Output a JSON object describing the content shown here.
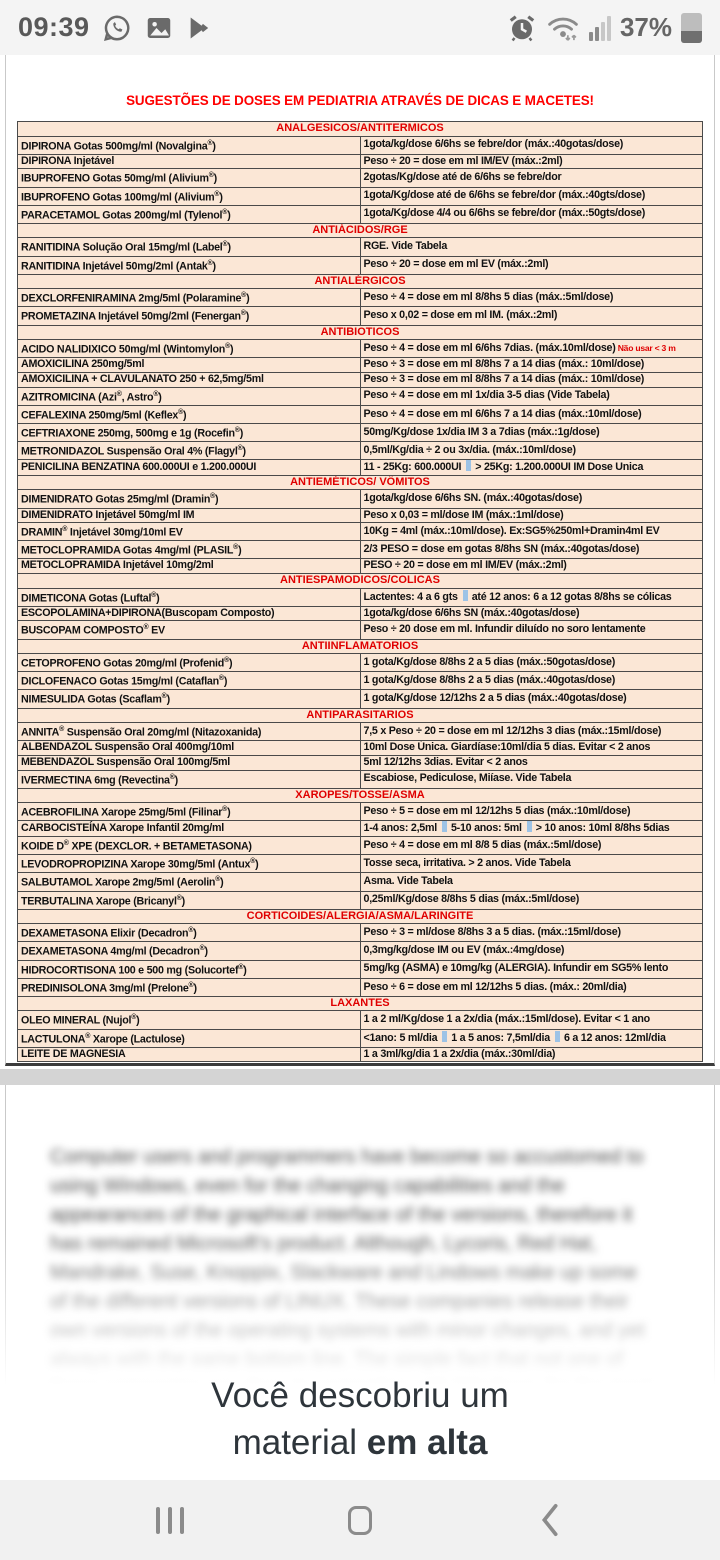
{
  "status_bar": {
    "time": "09:39",
    "battery_percent": "37%",
    "left_icons": [
      "whatsapp-icon",
      "gallery-icon",
      "play-store-icon"
    ],
    "right_icons": [
      "alarm-icon",
      "wifi-icon",
      "signal-icon",
      "battery-icon"
    ]
  },
  "document": {
    "title": "SUGESTÕES DE DOSES EM PEDIATRIA ATRAVÉS DE DICAS E MACETES!",
    "sections": [
      {
        "header": "ANALGESICOS/ANTITERMICOS",
        "rows": [
          {
            "drug": "DIPIRONA Gotas 500mg/ml (Novalgina®)",
            "dose": "1gota/kg/dose 6/6hs se febre/dor (máx.:40gotas/dose)"
          },
          {
            "drug": "DIPIRONA Injetável",
            "dose": "Peso ÷ 20 = dose em ml IM/EV (máx.:2ml)"
          },
          {
            "drug": "IBUPROFENO Gotas 50mg/ml (Alivium®)",
            "dose": "2gotas/Kg/dose até de 6/6hs se febre/dor"
          },
          {
            "drug": "IBUPROFENO Gotas 100mg/ml (Alivium®)",
            "dose": "1gota/Kg/dose até de 6/6hs se febre/dor (máx.:40gts/dose)"
          },
          {
            "drug": "PARACETAMOL Gotas 200mg/ml (Tylenol®)",
            "dose": "1gota/Kg/dose 4/4 ou 6/6hs se febre/dor (máx.:50gts/dose)"
          }
        ]
      },
      {
        "header": "ANTIÁCIDOS/RGE",
        "rows": [
          {
            "drug": "RANITIDINA Solução Oral 15mg/ml (Label®)",
            "dose": "RGE. Vide Tabela"
          },
          {
            "drug": "RANITIDINA Injetável 50mg/2ml (Antak®)",
            "dose": "Peso ÷ 20 = dose em ml EV (máx.:2ml)"
          }
        ]
      },
      {
        "header": "ANTIALÉRGICOS",
        "rows": [
          {
            "drug": "DEXCLORFENIRAMINA 2mg/5ml (Polaramine®)",
            "dose": "Peso ÷ 4 = dose em ml 8/8hs 5 dias (máx.:5ml/dose)"
          },
          {
            "drug": "PROMETAZINA Injetável 50mg/2ml (Fenergan®)",
            "dose": "Peso x 0,02 = dose em ml IM. (máx.:2ml)"
          }
        ]
      },
      {
        "header": "ANTIBIOTICOS",
        "rows": [
          {
            "drug": "ACIDO NALIDIXICO 50mg/ml (Wintomylon®)",
            "dose": "Peso ÷ 4 = dose em ml 6/6hs 7dias. (máx.10ml/dose)",
            "note": "Não usar < 3 m"
          },
          {
            "drug": "AMOXICILINA 250mg/5ml",
            "dose": "Peso ÷ 3 = dose em ml 8/8hs 7 a 14 dias (máx.: 10ml/dose)"
          },
          {
            "drug": "AMOXICILINA + CLAVULANATO 250 + 62,5mg/5ml",
            "dose": "Peso ÷ 3 = dose em ml 8/8hs 7 a 14 dias (máx.: 10ml/dose)"
          },
          {
            "drug": "AZITROMICINA (Azi®, Astro®)",
            "dose": "Peso ÷ 4 = dose em ml 1x/dia 3-5 dias (Vide Tabela)"
          },
          {
            "drug": "CEFALEXINA 250mg/5ml (Keflex®)",
            "dose": "Peso ÷ 4 = dose em ml 6/6hs 7 a 14 dias (máx.:10ml/dose)"
          },
          {
            "drug": "CEFTRIAXONE 250mg, 500mg e 1g (Rocefin®)",
            "dose": "50mg/Kg/dose 1x/dia IM 3 a 7dias (máx.:1g/dose)"
          },
          {
            "drug": "METRONIDAZOL Suspensão Oral 4% (Flagyl®)",
            "dose": "0,5ml/Kg/dia ÷ 2 ou 3x/dia. (máx.:10ml/dose)"
          },
          {
            "drug": "PENICILINA BENZATINA 600.000UI e 1.200.000UI",
            "dose_parts": [
              "11 - 25Kg: 600.000UI",
              "> 25Kg: 1.200.000UI IM Dose Unica"
            ]
          }
        ]
      },
      {
        "header": "ANTIEMÉTICOS/ VÔMITOS",
        "rows": [
          {
            "drug": "DIMENIDRATO Gotas 25mg/ml (Dramin®)",
            "dose": "1gota/kg/dose 6/6hs SN. (máx.:40gotas/dose)"
          },
          {
            "drug": "DIMENIDRATO Injetável 50mg/ml IM",
            "dose": "Peso x 0,03 = ml/dose IM (máx.:1ml/dose)"
          },
          {
            "drug": "DRAMIN® Injetável 30mg/10ml EV",
            "dose": "10Kg = 4ml (máx.:10ml/dose). Ex:SG5%250ml+Dramin4ml EV"
          },
          {
            "drug": "METOCLOPRAMIDA Gotas 4mg/ml (PLASIL®)",
            "dose": "2/3 PESO = dose em gotas 8/8hs SN (máx.:40gotas/dose)"
          },
          {
            "drug": "METOCLOPRAMIDA Injetável 10mg/2ml",
            "dose": "PESO ÷ 20 = dose em ml IM/EV (máx.:2ml)"
          }
        ]
      },
      {
        "header": "ANTIESPAMODICOS/COLICAS",
        "rows": [
          {
            "drug": "DIMETICONA Gotas (Luftal®)",
            "dose_parts": [
              "Lactentes: 4 a 6 gts",
              "até 12 anos: 6 a 12 gotas 8/8hs se cólicas"
            ]
          },
          {
            "drug": "ESCOPOLAMINA+DIPIRONA(Buscopam Composto)",
            "dose": "1gota/kg/dose 6/6hs SN (máx.:40gotas/dose)"
          },
          {
            "drug": "BUSCOPAM COMPOSTO® EV",
            "dose": "Peso ÷ 20 dose em ml. Infundir diluído no soro lentamente"
          }
        ]
      },
      {
        "header": "ANTIINFLAMATORIOS",
        "rows": [
          {
            "drug": "CETOPROFENO Gotas 20mg/ml (Profenid®)",
            "dose": "1 gota/Kg/dose 8/8hs 2 a 5 dias  (máx.:50gotas/dose)"
          },
          {
            "drug": "DICLOFENACO Gotas 15mg/ml (Cataflan®)",
            "dose": "1 gota/Kg/dose 8/8hs 2 a 5 dias  (máx.:40gotas/dose)"
          },
          {
            "drug": "NIMESULIDA Gotas (Scaflam®)",
            "dose": "1 gota/Kg/dose 12/12hs 2 a 5 dias (máx.:40gotas/dose)"
          }
        ]
      },
      {
        "header": "ANTIPARASITARIOS",
        "rows": [
          {
            "drug": "ANNITA® Suspensão Oral 20mg/ml (Nitazoxanida)",
            "dose": "7,5 x Peso ÷ 20 = dose em ml 12/12hs 3 dias (máx.:15ml/dose)"
          },
          {
            "drug": "ALBENDAZOL Suspensão Oral 400mg/10ml",
            "dose": "10ml  Dose Única. Giardíase:10ml/dia 5 dias.  Evitar < 2 anos"
          },
          {
            "drug": "MEBENDAZOL Suspensão Oral 100mg/5ml",
            "dose": "5ml 12/12hs 3dias.  Evitar < 2 anos"
          },
          {
            "drug": "IVERMECTINA 6mg (Revectina®)",
            "dose": "Escabiose, Pediculose, Miíase. Vide Tabela"
          }
        ]
      },
      {
        "header": "XAROPES/TOSSE/ASMA",
        "rows": [
          {
            "drug": "ACEBROFILINA Xarope 25mg/5ml (Filinar®)",
            "dose": "Peso ÷ 5 = dose em ml 12/12hs 5 dias (máx.:10ml/dose)"
          },
          {
            "drug": "CARBOCISTEÍNA Xarope Infantil 20mg/ml",
            "dose_parts": [
              "1-4 anos: 2,5ml",
              "5-10 anos: 5ml",
              "> 10 anos: 10ml 8/8hs  5dias"
            ]
          },
          {
            "drug": "KOIDE D® XPE (DEXCLOR. + BETAMETASONA)",
            "dose": "Peso ÷ 4 = dose em ml 8/8 5 dias (máx.:5ml/dose)"
          },
          {
            "drug": "LEVODROPROPIZINA Xarope 30mg/5ml (Antux®)",
            "dose": "Tosse seca, irritativa. > 2 anos. Vide Tabela"
          },
          {
            "drug": "SALBUTAMOL Xarope 2mg/5ml (Aerolin®)",
            "dose": "Asma. Vide Tabela"
          },
          {
            "drug": "TERBUTALINA Xarope (Bricanyl®)",
            "dose": "0,25ml/Kg/dose 8/8hs 5 dias (máx.:5ml/dose)"
          }
        ]
      },
      {
        "header": "CORTICOIDES/ALERGIA/ASMA/LARINGITE",
        "rows": [
          {
            "drug": "DEXAMETASONA Elixir (Decadron®)",
            "dose": "Peso ÷ 3 = ml/dose 8/8hs 3 a 5 dias. (máx.:15ml/dose)"
          },
          {
            "drug": "DEXAMETASONA 4mg/ml (Decadron®)",
            "dose": "0,3mg/kg/dose IM ou EV (máx.:4mg/dose)"
          },
          {
            "drug": "HIDROCORTISONA 100 e 500 mg (Solucortef®)",
            "dose": "5mg/kg (ASMA) e 10mg/kg (ALERGIA). Infundir em SG5% lento"
          },
          {
            "drug": "PREDINISOLONA 3mg/ml (Prelone®)",
            "dose": "Peso ÷ 6 = dose em ml 12/12hs 5 dias. (máx.: 20ml/dia)"
          }
        ]
      },
      {
        "header": "LAXANTES",
        "rows": [
          {
            "drug": "OLEO MINERAL (Nujol®)",
            "dose": "1 a 2 ml/Kg/dose 1 a 2x/dia (máx.:15ml/dose). Evitar < 1 ano"
          },
          {
            "drug": "LACTULONA® Xarope (Lactulose)",
            "dose_parts": [
              "<1ano: 5 ml/dia",
              "1 a 5 anos: 7,5ml/dia",
              "6 a 12 anos: 12ml/dia"
            ]
          },
          {
            "drug": "LEITE DE MAGNESIA",
            "dose": "1 a 3ml/kg/dia 1 a 2x/dia (máx.:30ml/dia)"
          }
        ]
      }
    ]
  },
  "preview": {
    "blurred_text": "Computer users and programmers have become so accustomed to using Windows, even for the changing capabilities and the appearances of the graphical interface of the versions, therefore it has remained Microsoft's product. Although, Lycoris, Red Hat, Mandrake, Suse, Knoppix, Slackware and Lindows make up some of the different versions of LINUX. These companies release their own versions of the operating systems with minor changes, and yet always with the same bottom line. The simple fact that not one of these companies are close to competing with Windows, for the most part causes the difference in market share."
  },
  "promo": {
    "line1": "Você descobriu um",
    "line2_regular": "material ",
    "line2_bold": "em alta"
  },
  "nav_bar": {
    "icons": [
      "recents-icon",
      "home-icon",
      "back-icon"
    ]
  },
  "colors": {
    "section_header_bg": "#a5c2dd",
    "section_header_text": "#e00000",
    "row_bg": "#fbe7d6",
    "title_red": "#ff0000",
    "separator_blue": "#9dc3e6",
    "status_bar_bg": "#f4f4f4",
    "nav_bar_bg": "#f1f1f1",
    "promo_text": "#2e353b"
  }
}
